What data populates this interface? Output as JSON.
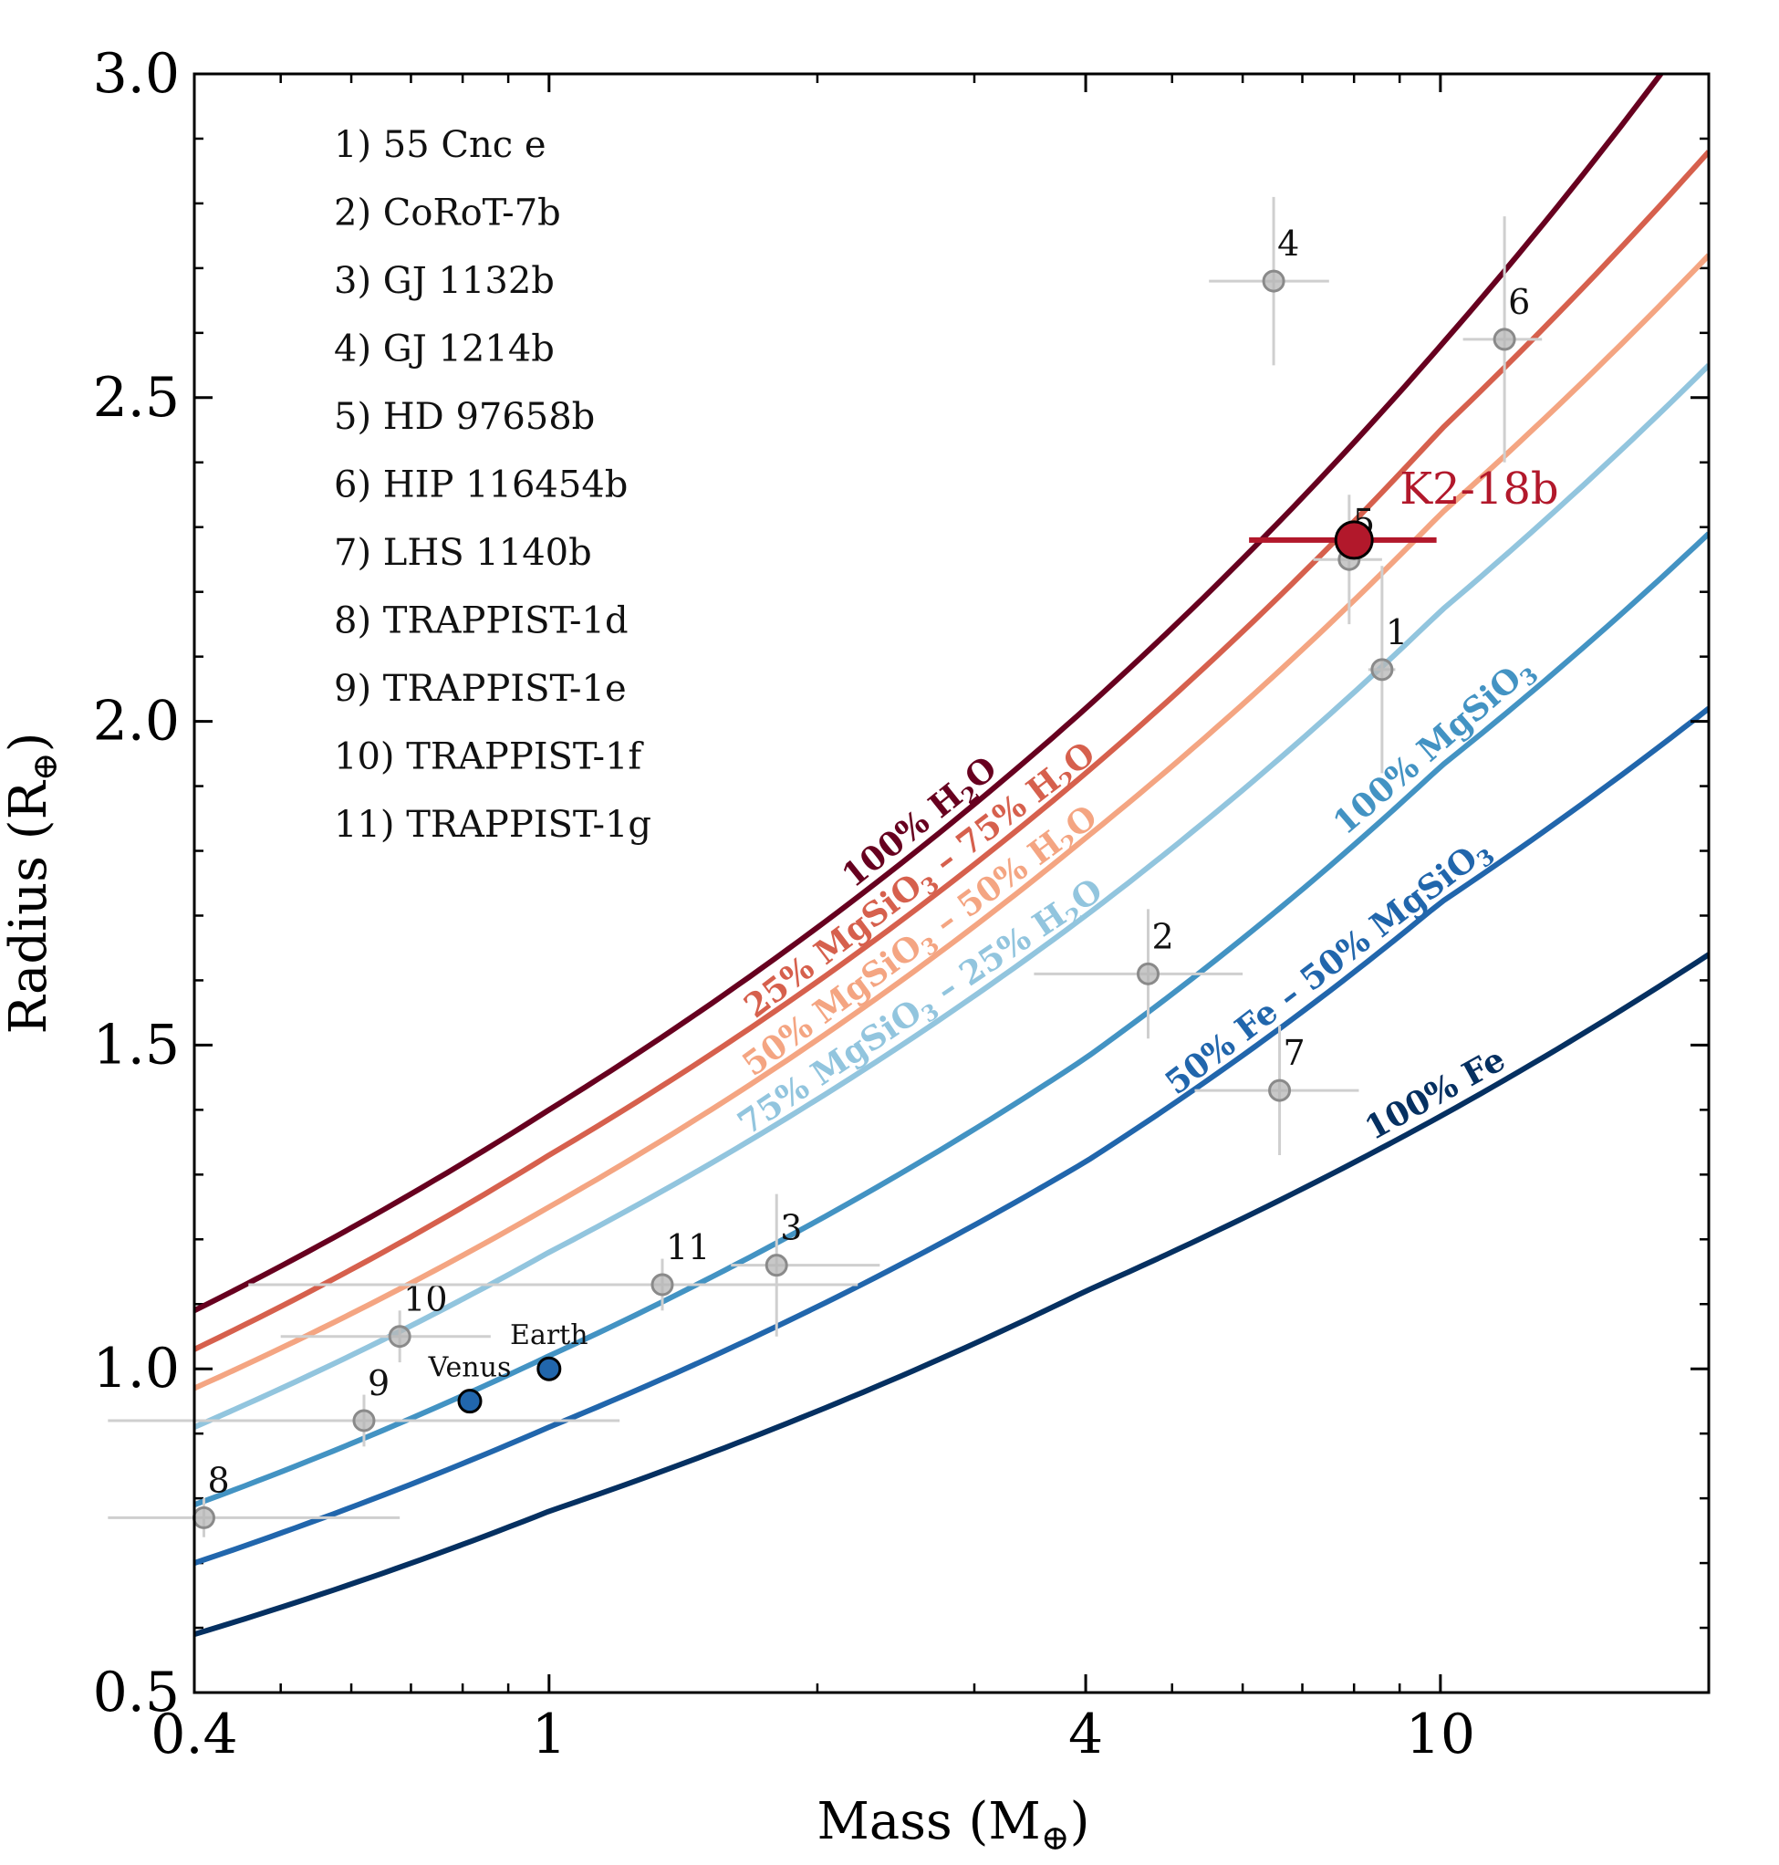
{
  "chart_data": {
    "type": "scatter",
    "xscale": "log",
    "xlim": [
      0.4,
      20
    ],
    "ylim": [
      0.5,
      3.0
    ],
    "xlabel": "Mass (M",
    "xlabel_sub": "⊕",
    "xlabel_close": ")",
    "ylabel": "Radius (R",
    "ylabel_sub": "⊕",
    "ylabel_close": ")",
    "x_ticks": [
      {
        "value": 0.4,
        "label": "0.4"
      },
      {
        "value": 1,
        "label": "1"
      },
      {
        "value": 4,
        "label": "4"
      },
      {
        "value": 10,
        "label": "10"
      }
    ],
    "x_minor_ticks": [
      0.5,
      0.6,
      0.7,
      0.8,
      0.9,
      2,
      3,
      5,
      6,
      7,
      8,
      9,
      20
    ],
    "y_ticks": [
      {
        "value": 0.5,
        "label": "0.5"
      },
      {
        "value": 1.0,
        "label": "1.0"
      },
      {
        "value": 1.5,
        "label": "1.5"
      },
      {
        "value": 2.0,
        "label": "2.0"
      },
      {
        "value": 2.5,
        "label": "2.5"
      },
      {
        "value": 3.0,
        "label": "3.0"
      }
    ],
    "y_minor_step": 0.1,
    "legend": [
      "1) 55 Cnc e",
      "2) CoRoT-7b",
      "3) GJ 1132b",
      "4) GJ 1214b",
      "5) HD 97658b",
      "6) HIP 116454b",
      "7) LHS 1140b",
      "8) TRAPPIST-1d",
      "9) TRAPPIST-1e",
      "10) TRAPPIST-1f",
      "11) TRAPPIST-1g"
    ],
    "curves": [
      {
        "name": "100% H2O",
        "label_parts": [
          "100% H",
          "2",
          "O"
        ],
        "color": "#67001f",
        "points": [
          [
            0.4,
            1.09
          ],
          [
            1,
            1.4
          ],
          [
            4,
            2.02
          ],
          [
            10,
            2.58
          ],
          [
            20,
            3.1
          ]
        ],
        "label_at": 2.65
      },
      {
        "name": "25% MgSiO3 – 75% H2O",
        "label_parts": [
          "25% MgSiO",
          "3",
          " – 75% H",
          "2",
          "O"
        ],
        "color": "#d6604d",
        "points": [
          [
            0.4,
            1.03
          ],
          [
            1,
            1.33
          ],
          [
            4,
            1.92
          ],
          [
            10,
            2.45
          ],
          [
            20,
            2.88
          ]
        ],
        "label_at": 2.65
      },
      {
        "name": "50% MgSiO3 – 50% H2O",
        "label_parts": [
          "50% MgSiO",
          "3",
          " – 50% H",
          "2",
          "O"
        ],
        "color": "#f4a582",
        "points": [
          [
            0.4,
            0.97
          ],
          [
            1,
            1.25
          ],
          [
            4,
            1.82
          ],
          [
            10,
            2.32
          ],
          [
            20,
            2.72
          ]
        ],
        "label_at": 2.65
      },
      {
        "name": "75% MgSiO3 – 25% H2O",
        "label_parts": [
          "75% MgSiO",
          "3",
          " – 25% H",
          "2",
          "O"
        ],
        "color": "#92c5de",
        "points": [
          [
            0.4,
            0.91
          ],
          [
            1,
            1.18
          ],
          [
            4,
            1.7
          ],
          [
            10,
            2.17
          ],
          [
            20,
            2.55
          ]
        ],
        "label_at": 2.65
      },
      {
        "name": "100% MgSiO3",
        "label_parts": [
          "100% MgSiO",
          "3"
        ],
        "color": "#4393c3",
        "points": [
          [
            0.4,
            0.79
          ],
          [
            1,
            1.02
          ],
          [
            4,
            1.48
          ],
          [
            10,
            1.93
          ],
          [
            20,
            2.29
          ]
        ],
        "label_at": 10.0
      },
      {
        "name": "50% Fe – 50% MgSiO3",
        "label_parts": [
          "50% Fe – 50% MgSiO",
          "3"
        ],
        "color": "#2166ac",
        "points": [
          [
            0.4,
            0.7
          ],
          [
            1,
            0.91
          ],
          [
            4,
            1.32
          ],
          [
            10,
            1.72
          ],
          [
            20,
            2.02
          ]
        ],
        "label_at": 7.6
      },
      {
        "name": "100% Fe",
        "label_parts": [
          "100% Fe"
        ],
        "color": "#053061",
        "points": [
          [
            0.4,
            0.59
          ],
          [
            1,
            0.78
          ],
          [
            4,
            1.12
          ],
          [
            10,
            1.39
          ],
          [
            20,
            1.64
          ]
        ],
        "label_at": 10.0
      }
    ],
    "planets": [
      {
        "id": "1",
        "mass": 8.6,
        "radius": 2.08,
        "mass_err": [
          0.3,
          0.3
        ],
        "radius_err": [
          0.16,
          0.16
        ]
      },
      {
        "id": "2",
        "mass": 4.7,
        "radius": 1.61,
        "mass_err": [
          1.2,
          1.3
        ],
        "radius_err": [
          0.1,
          0.1
        ]
      },
      {
        "id": "3",
        "mass": 1.8,
        "radius": 1.16,
        "mass_err": [
          0.2,
          0.55
        ],
        "radius_err": [
          0.11,
          0.11
        ]
      },
      {
        "id": "4",
        "mass": 6.5,
        "radius": 2.68,
        "mass_err": [
          1.0,
          1.0
        ],
        "radius_err": [
          0.13,
          0.13
        ]
      },
      {
        "id": "5",
        "mass": 7.9,
        "radius": 2.25,
        "mass_err": [
          0.7,
          0.7
        ],
        "radius_err": [
          0.1,
          0.1
        ]
      },
      {
        "id": "6",
        "mass": 11.8,
        "radius": 2.59,
        "mass_err": [
          1.2,
          1.2
        ],
        "radius_err": [
          0.19,
          0.19
        ]
      },
      {
        "id": "7",
        "mass": 6.6,
        "radius": 1.43,
        "mass_err": [
          1.3,
          1.5
        ],
        "radius_err": [
          0.1,
          0.1
        ]
      },
      {
        "id": "8",
        "mass": 0.41,
        "radius": 0.77,
        "mass_err": [
          0.27,
          0.27
        ],
        "radius_err": [
          0.03,
          0.03
        ]
      },
      {
        "id": "9",
        "mass": 0.62,
        "radius": 0.92,
        "mass_err": [
          0.58,
          0.58
        ],
        "radius_err": [
          0.04,
          0.04
        ]
      },
      {
        "id": "10",
        "mass": 0.68,
        "radius": 1.05,
        "mass_err": [
          0.18,
          0.18
        ],
        "radius_err": [
          0.04,
          0.04
        ]
      },
      {
        "id": "11",
        "mass": 1.34,
        "radius": 1.13,
        "mass_err": [
          0.88,
          0.88
        ],
        "radius_err": [
          0.04,
          0.04
        ]
      }
    ],
    "solar_system": [
      {
        "name": "Earth",
        "mass": 1.0,
        "radius": 1.0
      },
      {
        "name": "Venus",
        "mass": 0.815,
        "radius": 0.95
      }
    ],
    "highlight": {
      "name": "K2-18b",
      "mass": 8.0,
      "radius": 2.28,
      "mass_err": [
        1.9,
        1.9
      ],
      "color": "#b2182b"
    }
  }
}
